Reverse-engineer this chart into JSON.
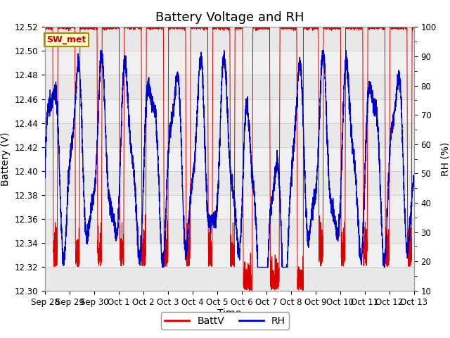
{
  "title": "Battery Voltage and RH",
  "xlabel": "Time",
  "ylabel_left": "Battery (V)",
  "ylabel_right": "RH (%)",
  "annotation": "SW_met",
  "ylim_left": [
    12.3,
    12.52
  ],
  "ylim_right": [
    10,
    100
  ],
  "yticks_left": [
    12.3,
    12.32,
    12.34,
    12.36,
    12.38,
    12.4,
    12.42,
    12.44,
    12.46,
    12.48,
    12.5,
    12.52
  ],
  "yticks_right": [
    10,
    20,
    30,
    40,
    50,
    60,
    70,
    80,
    90,
    100
  ],
  "xtick_labels": [
    "Sep 28",
    "Sep 29",
    "Sep 30",
    "Oct 1",
    "Oct 2",
    "Oct 3",
    "Oct 4",
    "Oct 5",
    "Oct 6",
    "Oct 7",
    "Oct 8",
    "Oct 9",
    "Oct 10",
    "Oct 11",
    "Oct 12",
    "Oct 13"
  ],
  "battv_color": "#dd0000",
  "rh_color": "#0000cc",
  "background_color": "#ffffff",
  "legend_battv": "BattV",
  "legend_rh": "RH",
  "annotation_bg": "#ffffcc",
  "annotation_border": "#aa8800",
  "title_fontsize": 13,
  "axis_fontsize": 10,
  "tick_fontsize": 8.5,
  "legend_fontsize": 10,
  "num_days": 15,
  "seed": 42,
  "band_colors": [
    "#e8e8e8",
    "#f0f0f0"
  ]
}
